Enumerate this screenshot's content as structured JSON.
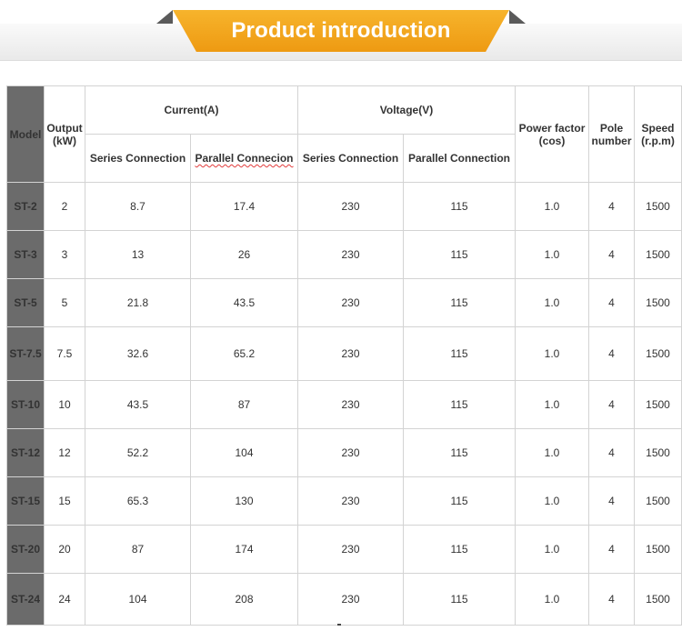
{
  "banner": {
    "title": "Product introduction"
  },
  "headers": {
    "model": "Model",
    "output": "Output (kW)",
    "current": "Current(A)",
    "voltage": "Voltage(V)",
    "power_factor": "Power factor (cos)",
    "pole_number": "Pole number",
    "speed": "Speed (r.p.m)",
    "series_connection": "Series Connection",
    "parallel_connection": "Parallel Connecion",
    "voltage_series": "Series Connection",
    "voltage_parallel": "Parallel Connection"
  },
  "rows": [
    {
      "model": "ST-2",
      "output": "2",
      "cur_series": "8.7",
      "cur_parallel": "17.4",
      "volt_series": "230",
      "volt_parallel": "115",
      "pf": "1.0",
      "poles": "4",
      "speed": "1500"
    },
    {
      "model": "ST-3",
      "output": "3",
      "cur_series": "13",
      "cur_parallel": "26",
      "volt_series": "230",
      "volt_parallel": "115",
      "pf": "1.0",
      "poles": "4",
      "speed": "1500"
    },
    {
      "model": "ST-5",
      "output": "5",
      "cur_series": "21.8",
      "cur_parallel": "43.5",
      "volt_series": "230",
      "volt_parallel": "115",
      "pf": "1.0",
      "poles": "4",
      "speed": "1500"
    },
    {
      "model": "ST-7.5",
      "output": "7.5",
      "cur_series": "32.6",
      "cur_parallel": "65.2",
      "volt_series": "230",
      "volt_parallel": "115",
      "pf": "1.0",
      "poles": "4",
      "speed": "1500"
    },
    {
      "model": "ST-10",
      "output": "10",
      "cur_series": "43.5",
      "cur_parallel": "87",
      "volt_series": "230",
      "volt_parallel": "115",
      "pf": "1.0",
      "poles": "4",
      "speed": "1500"
    },
    {
      "model": "ST-12",
      "output": "12",
      "cur_series": "52.2",
      "cur_parallel": "104",
      "volt_series": "230",
      "volt_parallel": "115",
      "pf": "1.0",
      "poles": "4",
      "speed": "1500"
    },
    {
      "model": "ST-15",
      "output": "15",
      "cur_series": "65.3",
      "cur_parallel": "130",
      "volt_series": "230",
      "volt_parallel": "115",
      "pf": "1.0",
      "poles": "4",
      "speed": "1500"
    },
    {
      "model": "ST-20",
      "output": "20",
      "cur_series": "87",
      "cur_parallel": "174",
      "volt_series": "230",
      "volt_parallel": "115",
      "pf": "1.0",
      "poles": "4",
      "speed": "1500"
    },
    {
      "model": "ST-24",
      "output": "24",
      "cur_series": "104",
      "cur_parallel": "208",
      "volt_series": "230",
      "volt_parallel": "115",
      "pf": "1.0",
      "poles": "4",
      "speed": "1500"
    }
  ],
  "colors": {
    "banner_orange": "#f1a41c",
    "banner_dark": "#5a5a5a",
    "model_column": "#6b6b6b",
    "grid_line": "#d3d3d3"
  }
}
